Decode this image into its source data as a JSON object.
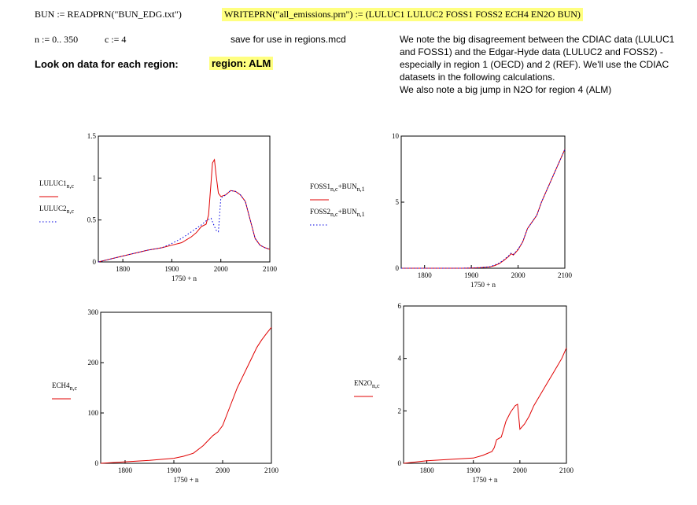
{
  "top": {
    "readprn": "BUN := READPRN(\"BUN_EDG.txt\")",
    "writeprn": "WRITEPRN(\"all_emissions.prn\") := (LULUC1  LULUC2  FOSS1  FOSS2  ECH4  EN2O  BUN)",
    "range_n": "n := 0.. 350",
    "c_def": "c := 4",
    "save_note": "save for use in regions.mcd",
    "look_label": "Look on data for each region:",
    "region_label": "region: ALM"
  },
  "notes": [
    "We note the big disagreement between the CDIAC data (LULUC1",
    "and FOSS1) and the Edgar-Hyde data (LULUC2 and FOSS2) -",
    "especially in region 1 (OECD) and 2 (REF). We'll use the CDIAC",
    "datasets in the following calculations.",
    "We also note a big jump in N2O for region 4 (ALM)"
  ],
  "colors": {
    "series1": "#e00000",
    "series2": "#0000e0",
    "highlight": "#ffff80"
  },
  "chart_data": [
    {
      "type": "line",
      "id": "luluc",
      "xlabel": "1750 + n",
      "xticks": [
        1800,
        1900,
        2000,
        2100
      ],
      "yticks": [
        "0",
        "0.5",
        "1",
        "1.5"
      ],
      "ylim": [
        0,
        1.5
      ],
      "xlim": [
        1750,
        2100
      ],
      "legend": [
        {
          "name": "LULUC1",
          "sub": "n,c",
          "style": "solid"
        },
        {
          "name": "LULUC2",
          "sub": "n,c",
          "style": "dotted"
        }
      ],
      "series": [
        {
          "name": "LULUC1",
          "style": "solid",
          "x": [
            1750,
            1800,
            1850,
            1880,
            1900,
            1920,
            1940,
            1950,
            1960,
            1970,
            1975,
            1980,
            1983,
            1987,
            1990,
            1995,
            2000,
            2010,
            2020,
            2030,
            2040,
            2050,
            2060,
            2070,
            2080,
            2090,
            2100
          ],
          "y": [
            0,
            0.07,
            0.14,
            0.17,
            0.2,
            0.23,
            0.3,
            0.35,
            0.42,
            0.45,
            0.56,
            0.95,
            1.18,
            1.22,
            1.05,
            0.82,
            0.78,
            0.8,
            0.85,
            0.84,
            0.8,
            0.72,
            0.5,
            0.28,
            0.2,
            0.17,
            0.15
          ]
        },
        {
          "name": "LULUC2",
          "style": "dotted",
          "x": [
            1750,
            1800,
            1850,
            1880,
            1900,
            1920,
            1930,
            1940,
            1950,
            1960,
            1970,
            1980,
            1985,
            1990,
            1995,
            2000,
            2010,
            2020,
            2030,
            2040,
            2050,
            2060,
            2070,
            2080,
            2090,
            2100
          ],
          "y": [
            0,
            0.07,
            0.14,
            0.17,
            0.22,
            0.28,
            0.32,
            0.36,
            0.4,
            0.44,
            0.49,
            0.52,
            0.45,
            0.38,
            0.36,
            0.76,
            0.8,
            0.85,
            0.84,
            0.8,
            0.72,
            0.5,
            0.28,
            0.2,
            0.17,
            0.15
          ]
        }
      ]
    },
    {
      "type": "line",
      "id": "foss",
      "xlabel": "1750 + n",
      "xticks": [
        1800,
        1900,
        2000,
        2100
      ],
      "yticks": [
        "0",
        "5",
        "10"
      ],
      "ylim": [
        0,
        10
      ],
      "xlim": [
        1750,
        2100
      ],
      "legend": [
        {
          "name": "FOSS1",
          "sub": "n,c",
          "extra": "+BUN",
          "extra_sub": "n,1",
          "style": "solid"
        },
        {
          "name": "FOSS2",
          "sub": "n,c",
          "extra": "+BUN",
          "extra_sub": "n,1",
          "style": "dotted"
        }
      ],
      "series": [
        {
          "name": "FOSS1",
          "style": "solid",
          "x": [
            1750,
            1880,
            1900,
            1920,
            1940,
            1950,
            1960,
            1970,
            1980,
            1985,
            1990,
            2000,
            2010,
            2020,
            2030,
            2040,
            2050,
            2060,
            2070,
            2080,
            2090,
            2100
          ],
          "y": [
            0,
            0,
            0.02,
            0.05,
            0.1,
            0.2,
            0.35,
            0.6,
            0.9,
            1.1,
            1.0,
            1.4,
            2.0,
            3.0,
            3.5,
            4.0,
            5.0,
            5.8,
            6.6,
            7.4,
            8.2,
            9.0
          ]
        },
        {
          "name": "FOSS2",
          "style": "dotted",
          "x": [
            1750,
            1880,
            1900,
            1920,
            1940,
            1950,
            1960,
            1970,
            1980,
            1985,
            1990,
            2000,
            2010,
            2020,
            2030,
            2040,
            2050,
            2060,
            2070,
            2080,
            2090,
            2100
          ],
          "y": [
            0,
            0,
            0.02,
            0.05,
            0.12,
            0.25,
            0.4,
            0.65,
            0.95,
            1.15,
            1.05,
            1.45,
            2.0,
            3.0,
            3.5,
            4.0,
            5.0,
            5.8,
            6.6,
            7.4,
            8.2,
            9.0
          ]
        }
      ]
    },
    {
      "type": "line",
      "id": "ech4",
      "xlabel": "1750 + n",
      "xticks": [
        1800,
        1900,
        2000,
        2100
      ],
      "yticks": [
        "0",
        "100",
        "200",
        "300"
      ],
      "ylim": [
        0,
        300
      ],
      "xlim": [
        1750,
        2100
      ],
      "legend": [
        {
          "name": "ECH4",
          "sub": "n,c",
          "style": "solid"
        }
      ],
      "series": [
        {
          "name": "ECH4",
          "style": "solid",
          "x": [
            1750,
            1800,
            1850,
            1900,
            1920,
            1940,
            1960,
            1980,
            1990,
            2000,
            2010,
            2020,
            2030,
            2040,
            2050,
            2060,
            2070,
            2080,
            2090,
            2100
          ],
          "y": [
            0,
            3,
            6,
            10,
            14,
            20,
            35,
            55,
            62,
            75,
            100,
            125,
            150,
            170,
            190,
            210,
            230,
            245,
            258,
            270
          ]
        }
      ]
    },
    {
      "type": "line",
      "id": "en2o",
      "xlabel": "1750 + n",
      "xticks": [
        1800,
        1900,
        2000,
        2100
      ],
      "yticks": [
        "0",
        "2",
        "4",
        "6"
      ],
      "ylim": [
        0,
        6
      ],
      "xlim": [
        1750,
        2100
      ],
      "legend": [
        {
          "name": "EN2O",
          "sub": "n,c",
          "style": "solid"
        }
      ],
      "series": [
        {
          "name": "EN2O",
          "style": "solid",
          "x": [
            1750,
            1800,
            1850,
            1900,
            1920,
            1940,
            1945,
            1950,
            1960,
            1965,
            1970,
            1980,
            1990,
            1995,
            2000,
            2010,
            2020,
            2030,
            2040,
            2050,
            2060,
            2070,
            2080,
            2090,
            2100
          ],
          "y": [
            0,
            0.1,
            0.15,
            0.2,
            0.3,
            0.45,
            0.6,
            0.9,
            1.0,
            1.3,
            1.6,
            1.95,
            2.2,
            2.25,
            1.3,
            1.5,
            1.8,
            2.2,
            2.5,
            2.8,
            3.1,
            3.4,
            3.7,
            4.0,
            4.4
          ]
        }
      ]
    }
  ]
}
